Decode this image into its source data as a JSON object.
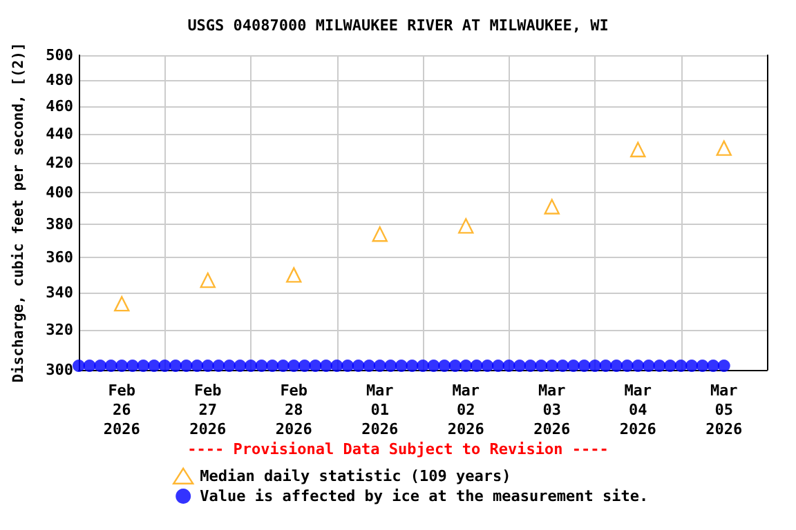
{
  "chart_data": {
    "type": "scatter",
    "title": "USGS 04087000 MILWAUKEE RIVER AT MILWAUKEE, WI",
    "ylabel": "Discharge, cubic feet per second, [(2)]",
    "annotations": [
      "---- Provisional Data Subject to Revision ----"
    ],
    "log": "y",
    "grid": true,
    "legend": "bottom",
    "xlim": [
      "2026-02-26T00:00",
      "2026-03-06T00:00"
    ],
    "xticks": [
      {
        "value": "2026-02-26T12:00",
        "label": "Feb\n26\n2026"
      },
      {
        "value": "2026-02-27T00:00",
        "label": null
      },
      {
        "value": "2026-02-27T12:00",
        "label": "Feb\n27\n2026"
      },
      {
        "value": "2026-02-28T00:00",
        "label": null
      },
      {
        "value": "2026-02-28T12:00",
        "label": "Feb\n28\n2026"
      },
      {
        "value": "2026-03-01T00:00",
        "label": null
      },
      {
        "value": "2026-03-01T12:00",
        "label": "Mar\n01\n2026"
      },
      {
        "value": "2026-03-02T00:00",
        "label": null
      },
      {
        "value": "2026-03-02T12:00",
        "label": "Mar\n02\n2026"
      },
      {
        "value": "2026-03-03T00:00",
        "label": null
      },
      {
        "value": "2026-03-03T12:00",
        "label": "Mar\n03\n2026"
      },
      {
        "value": "2026-03-04T00:00",
        "label": null
      },
      {
        "value": "2026-03-04T12:00",
        "label": "Mar\n04\n2026"
      },
      {
        "value": "2026-03-05T00:00",
        "label": null
      },
      {
        "value": "2026-03-05T12:00",
        "label": "Mar\n05\n2026"
      }
    ],
    "ylim": [
      300,
      500
    ],
    "yticks": [
      300,
      320,
      340,
      360,
      380,
      400,
      420,
      440,
      460,
      480,
      500
    ],
    "series": [
      {
        "name": "Median daily statistic (109 years)",
        "color": "#ffa500",
        "marker": "triangle",
        "x": [
          "2026-02-26T12:00",
          "2026-02-27T12:00",
          "2026-02-28T12:00",
          "2026-03-01T12:00",
          "2026-03-02T12:00",
          "2026-03-03T12:00",
          "2026-03-04T12:00",
          "2026-03-05T12:00"
        ],
        "values": [
          334,
          347,
          350,
          374,
          379,
          391,
          429,
          430
        ]
      },
      {
        "name": "Value is affected by ice at the measurement site.",
        "color": "#0000ff",
        "marker": "circle",
        "x": [
          "2026-02-26T00:00",
          "2026-02-26T03:00",
          "2026-02-26T06:00",
          "2026-02-26T09:00",
          "2026-02-26T12:00",
          "2026-02-26T15:00",
          "2026-02-26T18:00",
          "2026-02-26T21:00",
          "2026-02-27T00:00",
          "2026-02-27T03:00",
          "2026-02-27T06:00",
          "2026-02-27T09:00",
          "2026-02-27T12:00",
          "2026-02-27T15:00",
          "2026-02-27T18:00",
          "2026-02-27T21:00",
          "2026-02-28T00:00",
          "2026-02-28T03:00",
          "2026-02-28T06:00",
          "2026-02-28T09:00",
          "2026-02-28T12:00",
          "2026-02-28T15:00",
          "2026-02-28T18:00",
          "2026-02-28T21:00",
          "2026-03-01T00:00",
          "2026-03-01T03:00",
          "2026-03-01T06:00",
          "2026-03-01T09:00",
          "2026-03-01T12:00",
          "2026-03-01T15:00",
          "2026-03-01T18:00",
          "2026-03-01T21:00",
          "2026-03-02T00:00",
          "2026-03-02T03:00",
          "2026-03-02T06:00",
          "2026-03-02T09:00",
          "2026-03-02T12:00",
          "2026-03-02T15:00",
          "2026-03-02T18:00",
          "2026-03-02T21:00",
          "2026-03-03T00:00",
          "2026-03-03T03:00",
          "2026-03-03T06:00",
          "2026-03-03T09:00",
          "2026-03-03T12:00",
          "2026-03-03T15:00",
          "2026-03-03T18:00",
          "2026-03-03T21:00",
          "2026-03-04T00:00",
          "2026-03-04T03:00",
          "2026-03-04T06:00",
          "2026-03-04T09:00",
          "2026-03-04T12:00",
          "2026-03-04T15:00",
          "2026-03-04T18:00",
          "2026-03-04T21:00",
          "2026-03-05T00:00",
          "2026-03-05T03:00",
          "2026-03-05T06:00",
          "2026-03-05T09:00",
          "2026-03-05T12:00"
        ],
        "values": [
          302,
          302,
          302,
          302,
          302,
          302,
          302,
          302,
          302,
          302,
          302,
          302,
          302,
          302,
          302,
          302,
          302,
          302,
          302,
          302,
          302,
          302,
          302,
          302,
          302,
          302,
          302,
          302,
          302,
          302,
          302,
          302,
          302,
          302,
          302,
          302,
          302,
          302,
          302,
          302,
          302,
          302,
          302,
          302,
          302,
          302,
          302,
          302,
          302,
          302,
          302,
          302,
          302,
          302,
          302,
          302,
          302,
          302,
          302,
          302,
          302
        ]
      }
    ]
  }
}
